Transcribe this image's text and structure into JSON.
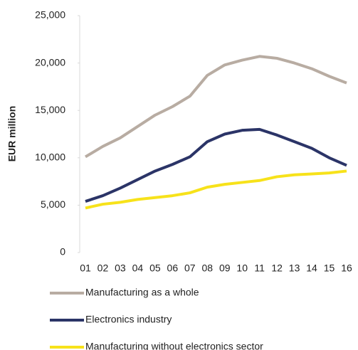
{
  "chart_data": {
    "type": "line",
    "y_label": "EUR million",
    "categories": [
      "01",
      "02",
      "03",
      "04",
      "05",
      "06",
      "07",
      "08",
      "09",
      "10",
      "11",
      "12",
      "13",
      "14",
      "15",
      "16"
    ],
    "series": [
      {
        "name": "Manufacturing as a whole",
        "color": "#b8aca2",
        "values": [
          10100,
          11200,
          12100,
          13300,
          14500,
          15400,
          16500,
          18700,
          19800,
          20300,
          20700,
          20500,
          20000,
          19400,
          18600,
          17900
        ]
      },
      {
        "name": "Electronics industry",
        "color": "#2b3467",
        "values": [
          5400,
          6000,
          6800,
          7700,
          8600,
          9300,
          10100,
          11700,
          12500,
          12900,
          13000,
          12400,
          11700,
          11000,
          10000,
          9200
        ]
      },
      {
        "name": "Manufacturing without electronics sector",
        "color": "#f7e21a",
        "values": [
          4700,
          5100,
          5300,
          5600,
          5800,
          6000,
          6300,
          6900,
          7200,
          7400,
          7600,
          8000,
          8200,
          8300,
          8400,
          8600
        ]
      }
    ],
    "ylim": [
      0,
      25000
    ],
    "yticks": [
      0,
      {
        "value": 5000,
        "label": "5,000"
      },
      {
        "value": 10000,
        "label": "10,000"
      },
      {
        "value": 15000,
        "label": "15,000"
      },
      {
        "value": 20000,
        "label": "20,000"
      },
      {
        "value": 25000,
        "label": "25,000"
      }
    ],
    "grid": false,
    "legend": "bottom"
  }
}
